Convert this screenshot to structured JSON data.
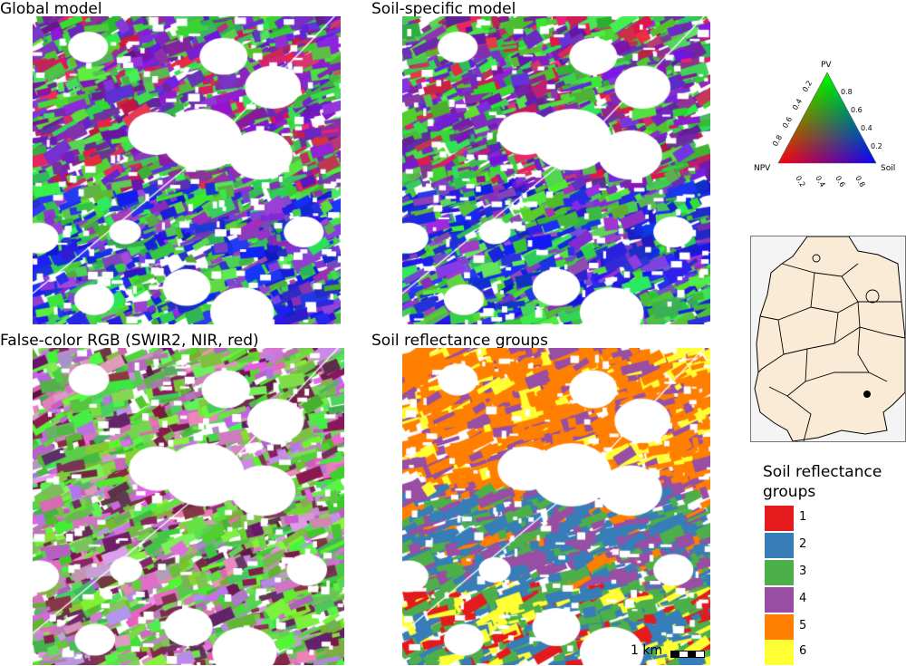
{
  "panels": {
    "global": {
      "title": "Global model"
    },
    "soil_specific": {
      "title": "Soil-specific model"
    },
    "false_color": {
      "title": "False-color RGB (SWIR2, NIR, red)"
    },
    "soil_groups": {
      "title": "Soil reflectance groups"
    }
  },
  "ternary_legend": {
    "vertices": {
      "top": "PV",
      "left": "NPV",
      "right": "Soil"
    },
    "ticks": [
      "0.2",
      "0.4",
      "0.6",
      "0.8"
    ],
    "colors": {
      "PV": "#00c000",
      "NPV": "#ff0000",
      "Soil": "#0000ff"
    }
  },
  "location_map": {
    "marker": "study-site-dot"
  },
  "legend": {
    "title_line1": "Soil reflectance",
    "title_line2": "groups",
    "items": [
      {
        "label": "1",
        "color": "#e41a1c"
      },
      {
        "label": "2",
        "color": "#377eb8"
      },
      {
        "label": "3",
        "color": "#4daf4a"
      },
      {
        "label": "4",
        "color": "#984ea3"
      },
      {
        "label": "5",
        "color": "#ff7f00"
      },
      {
        "label": "6",
        "color": "#ffff33"
      }
    ]
  },
  "scale_bar": {
    "label": "1 km"
  }
}
